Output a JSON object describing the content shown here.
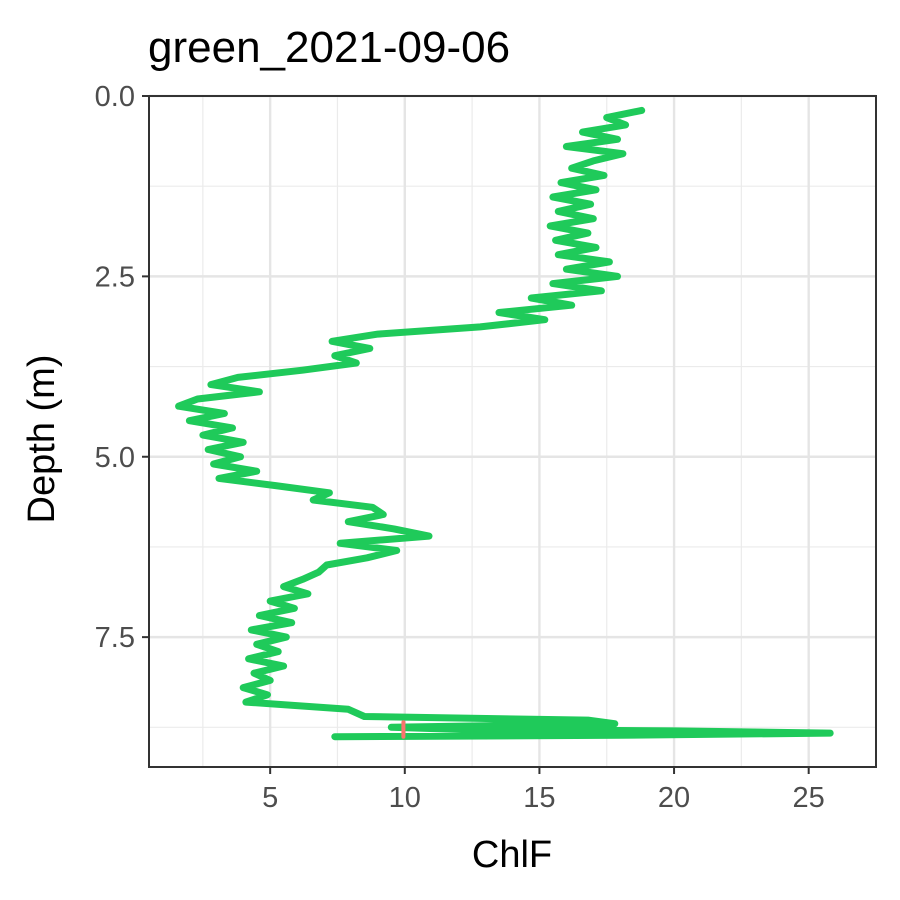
{
  "chart_data": {
    "type": "line",
    "title": "green_2021-09-06",
    "xlabel": "ChlF",
    "ylabel": "Depth (m)",
    "xlim": [
      0.5,
      27.5
    ],
    "ylim": [
      0.0,
      9.3
    ],
    "y_reversed": true,
    "x_ticks": [
      5,
      10,
      15,
      20,
      25
    ],
    "x_tick_labels": [
      "5",
      "10",
      "15",
      "20",
      "25"
    ],
    "y_ticks": [
      0.0,
      2.5,
      5.0,
      7.5
    ],
    "y_tick_labels": [
      "0.0",
      "2.5",
      "5.0",
      "7.5"
    ],
    "grid": true,
    "legend": "none",
    "series": [
      {
        "color": "#1fca5a",
        "points": [
          [
            18.8,
            0.2
          ],
          [
            17.5,
            0.3
          ],
          [
            18.2,
            0.4
          ],
          [
            16.6,
            0.5
          ],
          [
            17.9,
            0.6
          ],
          [
            16.0,
            0.7
          ],
          [
            18.1,
            0.8
          ],
          [
            17.0,
            0.9
          ],
          [
            16.2,
            1.0
          ],
          [
            17.4,
            1.1
          ],
          [
            15.8,
            1.2
          ],
          [
            17.1,
            1.3
          ],
          [
            15.5,
            1.4
          ],
          [
            16.9,
            1.5
          ],
          [
            15.7,
            1.6
          ],
          [
            17.0,
            1.7
          ],
          [
            15.4,
            1.8
          ],
          [
            16.8,
            1.9
          ],
          [
            15.6,
            2.0
          ],
          [
            17.1,
            2.1
          ],
          [
            15.7,
            2.2
          ],
          [
            17.6,
            2.3
          ],
          [
            16.0,
            2.4
          ],
          [
            17.9,
            2.5
          ],
          [
            15.5,
            2.6
          ],
          [
            17.3,
            2.7
          ],
          [
            14.7,
            2.8
          ],
          [
            16.2,
            2.9
          ],
          [
            13.5,
            3.0
          ],
          [
            15.2,
            3.1
          ],
          [
            12.8,
            3.2
          ],
          [
            9.0,
            3.3
          ],
          [
            7.3,
            3.4
          ],
          [
            8.7,
            3.5
          ],
          [
            7.4,
            3.6
          ],
          [
            8.2,
            3.7
          ],
          [
            6.2,
            3.8
          ],
          [
            3.8,
            3.9
          ],
          [
            2.8,
            4.0
          ],
          [
            4.6,
            4.1
          ],
          [
            2.3,
            4.2
          ],
          [
            1.6,
            4.3
          ],
          [
            3.3,
            4.4
          ],
          [
            2.0,
            4.5
          ],
          [
            3.6,
            4.6
          ],
          [
            2.5,
            4.7
          ],
          [
            4.0,
            4.8
          ],
          [
            2.7,
            4.9
          ],
          [
            3.9,
            5.0
          ],
          [
            2.9,
            5.1
          ],
          [
            4.5,
            5.2
          ],
          [
            3.1,
            5.3
          ],
          [
            5.2,
            5.4
          ],
          [
            7.2,
            5.5
          ],
          [
            6.6,
            5.6
          ],
          [
            8.8,
            5.7
          ],
          [
            9.2,
            5.8
          ],
          [
            7.9,
            5.9
          ],
          [
            9.6,
            6.0
          ],
          [
            10.9,
            6.1
          ],
          [
            7.6,
            6.2
          ],
          [
            9.7,
            6.3
          ],
          [
            8.6,
            6.4
          ],
          [
            7.1,
            6.5
          ],
          [
            6.8,
            6.6
          ],
          [
            6.2,
            6.7
          ],
          [
            5.5,
            6.8
          ],
          [
            6.4,
            6.9
          ],
          [
            5.0,
            7.0
          ],
          [
            5.9,
            7.1
          ],
          [
            4.6,
            7.2
          ],
          [
            5.8,
            7.3
          ],
          [
            4.3,
            7.4
          ],
          [
            5.6,
            7.5
          ],
          [
            4.5,
            7.6
          ],
          [
            5.3,
            7.7
          ],
          [
            4.2,
            7.8
          ],
          [
            5.5,
            7.9
          ],
          [
            4.4,
            8.0
          ],
          [
            5.0,
            8.1
          ],
          [
            4.0,
            8.2
          ],
          [
            4.9,
            8.3
          ],
          [
            4.1,
            8.4
          ],
          [
            7.9,
            8.5
          ],
          [
            8.5,
            8.6
          ],
          [
            16.8,
            8.65
          ],
          [
            17.8,
            8.7
          ],
          [
            9.5,
            8.75
          ],
          [
            12.1,
            8.78
          ],
          [
            20.0,
            8.8
          ],
          [
            25.8,
            8.83
          ],
          [
            18.0,
            8.86
          ],
          [
            7.4,
            8.88
          ]
        ]
      },
      {
        "color": "#f8766d",
        "points": [
          [
            9.95,
            8.68
          ],
          [
            9.95,
            8.88
          ]
        ]
      }
    ]
  }
}
